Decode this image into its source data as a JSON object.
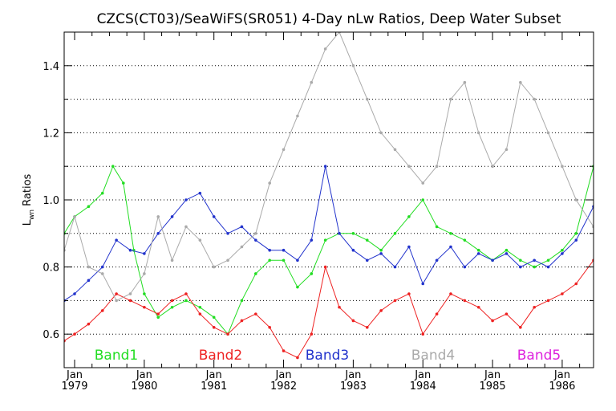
{
  "chart_data": {
    "type": "line",
    "title": "CZCS(CT03)/SeaWiFS(SR051) 4-Day nLw Ratios, Deep Water Subset",
    "ylabel_main": "L",
    "ylabel_sub": "wn",
    "ylabel_rest": " Ratios",
    "xlim": [
      1978.85,
      1986.45
    ],
    "ylim": [
      0.5,
      1.5
    ],
    "grid": true,
    "legend_position": "bottom",
    "yticks": [
      0.6,
      0.8,
      1.0,
      1.2,
      1.4
    ],
    "ytick_labels": [
      "0.6",
      "0.8",
      "1.0",
      "1.2",
      "1.4"
    ],
    "xticks": [
      {
        "value": 1979.0,
        "month": "Jan",
        "year": "1979"
      },
      {
        "value": 1980.0,
        "month": "Jan",
        "year": "1980"
      },
      {
        "value": 1981.0,
        "month": "Jan",
        "year": "1981"
      },
      {
        "value": 1982.0,
        "month": "Jan",
        "year": "1982"
      },
      {
        "value": 1983.0,
        "month": "Jan",
        "year": "1983"
      },
      {
        "value": 1984.0,
        "month": "Jan",
        "year": "1984"
      },
      {
        "value": 1985.0,
        "month": "Jan",
        "year": "1985"
      },
      {
        "value": 1986.0,
        "month": "Jan",
        "year": "1986"
      }
    ],
    "series": [
      {
        "name": "Band1",
        "color": "#22dd22",
        "x": [
          1978.85,
          1979.0,
          1979.2,
          1979.4,
          1979.55,
          1979.7,
          1979.85,
          1980.0,
          1980.2,
          1980.4,
          1980.6,
          1980.8,
          1981.0,
          1981.2,
          1981.4,
          1981.6,
          1981.8,
          1982.0,
          1982.2,
          1982.4,
          1982.6,
          1982.8,
          1983.0,
          1983.2,
          1983.4,
          1983.6,
          1983.8,
          1984.0,
          1984.2,
          1984.4,
          1984.6,
          1984.8,
          1985.0,
          1985.2,
          1985.4,
          1985.6,
          1985.8,
          1986.0,
          1986.2,
          1986.45
        ],
        "y": [
          0.9,
          0.95,
          0.98,
          1.02,
          1.1,
          1.05,
          0.85,
          0.72,
          0.65,
          0.68,
          0.7,
          0.68,
          0.65,
          0.6,
          0.7,
          0.78,
          0.82,
          0.82,
          0.74,
          0.78,
          0.88,
          0.9,
          0.9,
          0.88,
          0.85,
          0.9,
          0.95,
          1.0,
          0.92,
          0.9,
          0.88,
          0.85,
          0.82,
          0.85,
          0.82,
          0.8,
          0.82,
          0.85,
          0.9,
          1.1
        ]
      },
      {
        "name": "Band2",
        "color": "#ee2222",
        "x": [
          1978.85,
          1979.0,
          1979.2,
          1979.4,
          1979.6,
          1979.8,
          1980.0,
          1980.2,
          1980.4,
          1980.6,
          1980.8,
          1981.0,
          1981.2,
          1981.4,
          1981.6,
          1981.8,
          1982.0,
          1982.2,
          1982.4,
          1982.6,
          1982.8,
          1983.0,
          1983.2,
          1983.4,
          1983.6,
          1983.8,
          1984.0,
          1984.2,
          1984.4,
          1984.6,
          1984.8,
          1985.0,
          1985.2,
          1985.4,
          1985.6,
          1985.8,
          1986.0,
          1986.2,
          1986.45
        ],
        "y": [
          0.58,
          0.6,
          0.63,
          0.67,
          0.72,
          0.7,
          0.68,
          0.66,
          0.7,
          0.72,
          0.66,
          0.62,
          0.6,
          0.64,
          0.66,
          0.62,
          0.55,
          0.53,
          0.6,
          0.8,
          0.68,
          0.64,
          0.62,
          0.67,
          0.7,
          0.72,
          0.6,
          0.66,
          0.72,
          0.7,
          0.68,
          0.64,
          0.66,
          0.62,
          0.68,
          0.7,
          0.72,
          0.75,
          0.82
        ]
      },
      {
        "name": "Band3",
        "color": "#2233cc",
        "x": [
          1978.85,
          1979.0,
          1979.2,
          1979.4,
          1979.6,
          1979.8,
          1980.0,
          1980.2,
          1980.4,
          1980.6,
          1980.8,
          1981.0,
          1981.2,
          1981.4,
          1981.6,
          1981.8,
          1982.0,
          1982.2,
          1982.4,
          1982.6,
          1982.8,
          1983.0,
          1983.2,
          1983.4,
          1983.6,
          1983.8,
          1984.0,
          1984.2,
          1984.4,
          1984.6,
          1984.8,
          1985.0,
          1985.2,
          1985.4,
          1985.6,
          1985.8,
          1986.0,
          1986.2,
          1986.45
        ],
        "y": [
          0.7,
          0.72,
          0.76,
          0.8,
          0.88,
          0.85,
          0.84,
          0.9,
          0.95,
          1.0,
          1.02,
          0.95,
          0.9,
          0.92,
          0.88,
          0.85,
          0.85,
          0.82,
          0.88,
          1.1,
          0.9,
          0.85,
          0.82,
          0.84,
          0.8,
          0.86,
          0.75,
          0.82,
          0.86,
          0.8,
          0.84,
          0.82,
          0.84,
          0.8,
          0.82,
          0.8,
          0.84,
          0.88,
          0.98
        ]
      },
      {
        "name": "Band4",
        "color": "#aaaaaa",
        "x": [
          1978.85,
          1979.0,
          1979.2,
          1979.4,
          1979.6,
          1979.8,
          1980.0,
          1980.2,
          1980.4,
          1980.6,
          1980.8,
          1981.0,
          1981.2,
          1981.4,
          1981.6,
          1981.8,
          1982.0,
          1982.2,
          1982.4,
          1982.6,
          1982.8,
          1983.0,
          1983.2,
          1983.4,
          1983.6,
          1983.8,
          1984.0,
          1984.2,
          1984.4,
          1984.6,
          1984.8,
          1985.0,
          1985.2,
          1985.4,
          1985.6,
          1985.8,
          1986.0,
          1986.2,
          1986.45
        ],
        "y": [
          0.85,
          0.95,
          0.8,
          0.78,
          0.7,
          0.72,
          0.78,
          0.95,
          0.82,
          0.92,
          0.88,
          0.8,
          0.82,
          0.86,
          0.9,
          1.05,
          1.15,
          1.25,
          1.35,
          1.45,
          1.5,
          1.4,
          1.3,
          1.2,
          1.15,
          1.1,
          1.05,
          1.1,
          1.3,
          1.35,
          1.2,
          1.1,
          1.15,
          1.35,
          1.3,
          1.2,
          1.1,
          1.0,
          0.92
        ]
      },
      {
        "name": "Band5",
        "color": "#dd22dd",
        "x": [],
        "y": []
      }
    ]
  }
}
